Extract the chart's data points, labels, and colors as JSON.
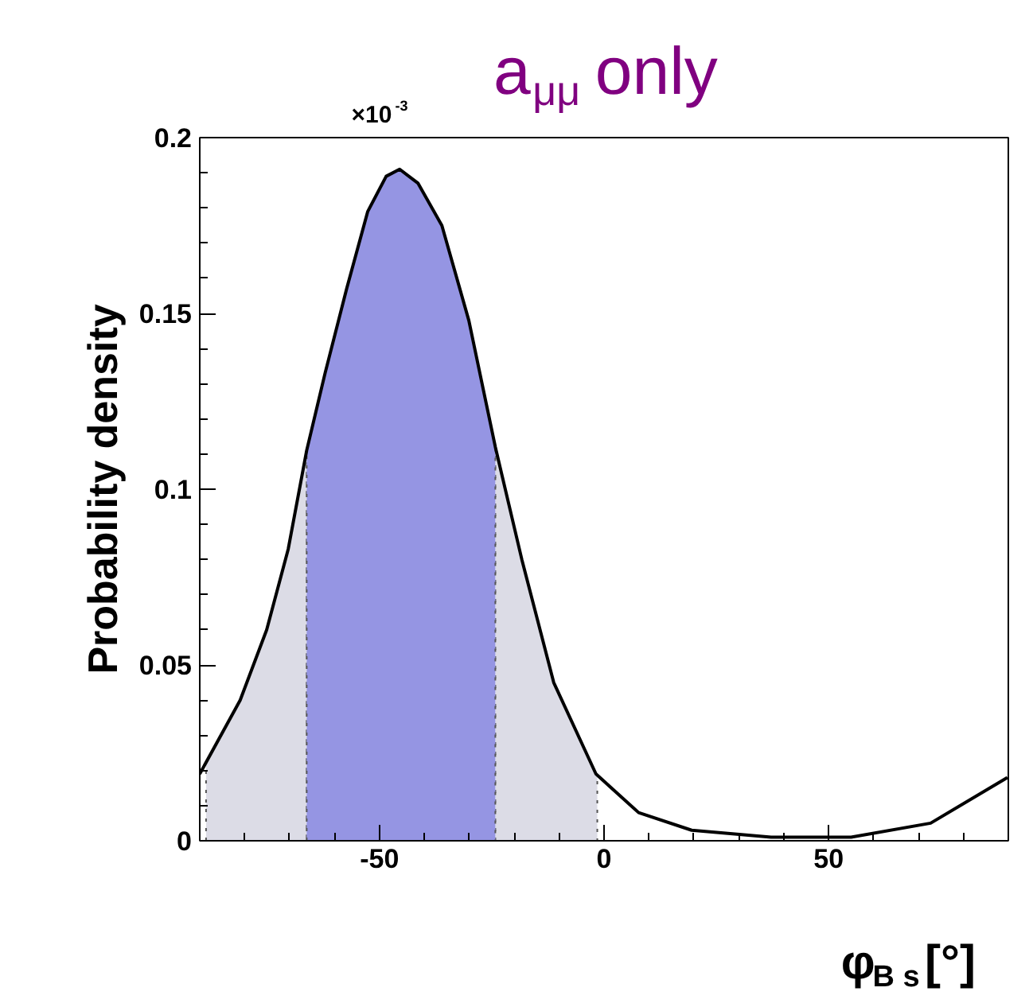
{
  "chart_data": {
    "type": "line",
    "title": "a$_{μμ}$ only",
    "xlabel": "φ$_{B s}$[°]",
    "ylabel": "Probability density",
    "annotations": [
      "×10$^{-3}$"
    ],
    "x": [
      -90,
      -81.0,
      -75.1,
      -70.3,
      -66.2,
      -62.1,
      -57.3,
      -52.6,
      -48.5,
      -45.5,
      -41.4,
      -36.1,
      -30.1,
      -24.2,
      -18.3,
      -11.2,
      -1.8,
      7.7,
      19.5,
      37.2,
      55.0,
      72.7,
      89.8
    ],
    "series": [
      {
        "type": "area",
        "color": "#dcdce6",
        "x": [
          -88.6,
          -81.0,
          -75.1,
          -70.3,
          -66.2
        ],
        "values": [
          0.022,
          0.04,
          0.06,
          0.083,
          0.111
        ]
      },
      {
        "type": "area",
        "color": "#dcdce6",
        "x": [
          -24.2,
          -18.3,
          -11.2,
          -1.5
        ],
        "values": [
          0.112,
          0.08,
          0.045,
          0.018
        ]
      },
      {
        "type": "area",
        "color": "#9595e3",
        "x": [
          -66.2,
          -62.1,
          -57.3,
          -52.6,
          -48.5,
          -45.5,
          -41.4,
          -36.1,
          -30.1,
          -24.2
        ],
        "values": [
          0.111,
          0.133,
          0.157,
          0.179,
          0.189,
          0.191,
          0.187,
          0.175,
          0.148,
          0.112
        ]
      },
      {
        "color": "#000000",
        "values": [
          0.019,
          0.04,
          0.06,
          0.083,
          0.111,
          0.133,
          0.157,
          0.179,
          0.189,
          0.191,
          0.187,
          0.175,
          0.148,
          0.112,
          0.08,
          0.045,
          0.019,
          0.008,
          0.003,
          0.001,
          0.001,
          0.005,
          0.018
        ]
      }
    ],
    "xlim": [
      -90,
      90
    ],
    "ylim": [
      0,
      0.2
    ],
    "xticks": [
      -50,
      0,
      50
    ],
    "yticks": [
      0,
      0.05,
      0.1,
      0.15,
      0.2
    ],
    "grid": false,
    "marker": "none",
    "line_style": "solid"
  }
}
